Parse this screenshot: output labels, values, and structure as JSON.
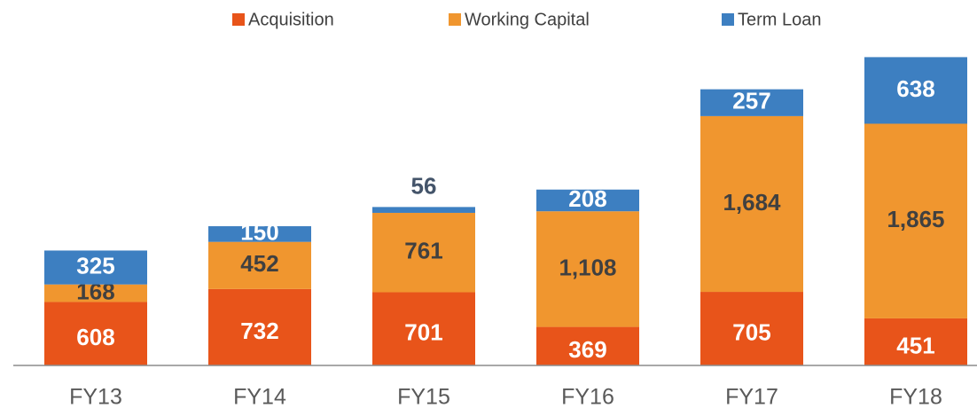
{
  "chart_data": {
    "type": "stacked_bar",
    "categories": [
      "FY13",
      "FY14",
      "FY15",
      "FY16",
      "FY17",
      "FY18"
    ],
    "series": [
      {
        "name": "Acquisition",
        "color": "#e8541a",
        "values": [
          608,
          732,
          701,
          369,
          705,
          451
        ]
      },
      {
        "name": "Working Capital",
        "color": "#f0962f",
        "values": [
          168,
          452,
          761,
          1108,
          1684,
          1865
        ],
        "value_labels": [
          "168",
          "452",
          "761",
          "1,108",
          "1,684",
          "1,865"
        ]
      },
      {
        "name": "Term Loan",
        "color": "#3d7fc1",
        "values": [
          325,
          150,
          56,
          208,
          257,
          638
        ]
      }
    ],
    "ylim": [
      0,
      3000
    ]
  }
}
